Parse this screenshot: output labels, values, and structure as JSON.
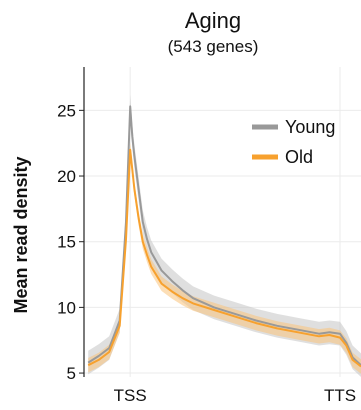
{
  "chart_data": {
    "type": "line",
    "title": "Aging",
    "subtitle": "(543 genes)",
    "xlabel": "",
    "ylabel": "Mean read density",
    "x_ticks": [
      "TSS",
      "TTS"
    ],
    "x_range": [
      -0.22,
      1.1
    ],
    "ylim": [
      4.7,
      28.3
    ],
    "y_ticks": [
      5,
      10,
      15,
      20,
      25
    ],
    "grid": true,
    "legend_position": "top-right",
    "x": [
      -0.2,
      -0.15,
      -0.1,
      -0.05,
      -0.02,
      0.0,
      0.01,
      0.02,
      0.04,
      0.06,
      0.08,
      0.1,
      0.15,
      0.2,
      0.25,
      0.3,
      0.4,
      0.5,
      0.6,
      0.7,
      0.8,
      0.9,
      0.95,
      1.0,
      1.03,
      1.06,
      1.1
    ],
    "series": [
      {
        "name": "Young",
        "color": "#999999",
        "values": [
          5.8,
          6.3,
          6.9,
          9.0,
          16.5,
          25.3,
          23.0,
          21.5,
          19.0,
          16.5,
          15.2,
          14.2,
          12.8,
          12.0,
          11.3,
          10.7,
          10.0,
          9.5,
          9.0,
          8.6,
          8.3,
          8.0,
          8.1,
          8.0,
          7.3,
          6.2,
          5.6
        ]
      },
      {
        "name": "Old",
        "color": "#f7a12e",
        "values": [
          5.6,
          6.0,
          6.6,
          8.6,
          15.2,
          22.0,
          20.5,
          19.0,
          16.8,
          15.0,
          14.0,
          13.1,
          11.8,
          11.2,
          10.7,
          10.3,
          9.8,
          9.3,
          8.8,
          8.4,
          8.1,
          7.8,
          7.9,
          7.7,
          7.1,
          6.0,
          5.5
        ]
      }
    ]
  }
}
